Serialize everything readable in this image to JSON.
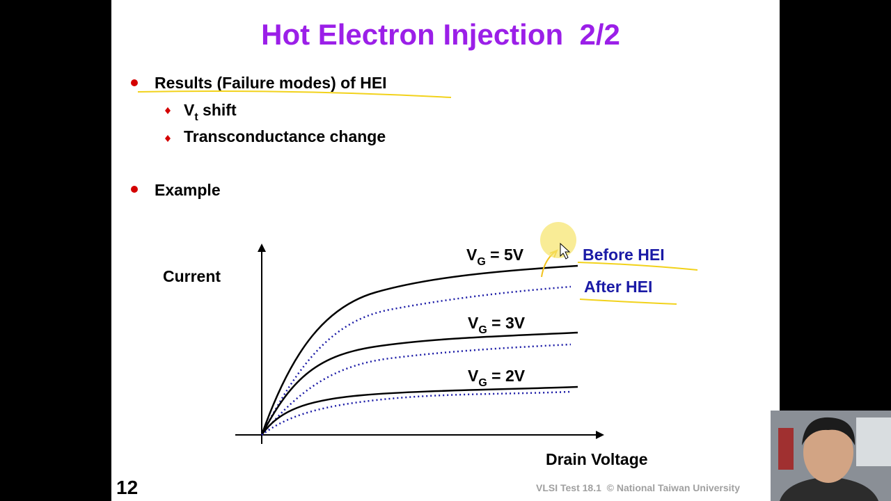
{
  "title": "Hot Electron Injection  2/2",
  "bullets": [
    {
      "text": "Results (Failure modes) of HEI",
      "subitems": [
        {
          "main": "V",
          "sub": "t",
          "rest": " shift"
        },
        {
          "main": "Transconductance change"
        }
      ]
    },
    {
      "text": "Example"
    }
  ],
  "diagram": {
    "y_axis_label": "Current",
    "x_axis_label": "Drain Voltage",
    "curve_labels": [
      {
        "main": "V",
        "sub": "G",
        "rest": " = 5V"
      },
      {
        "main": "V",
        "sub": "G",
        "rest": " = 3V"
      },
      {
        "main": "V",
        "sub": "G",
        "rest": " = 2V"
      }
    ],
    "legend": [
      "Before HEI",
      "After HEI"
    ]
  },
  "page_number": "12",
  "footer": "VLSI Test 18.1  © National Taiwan University"
}
